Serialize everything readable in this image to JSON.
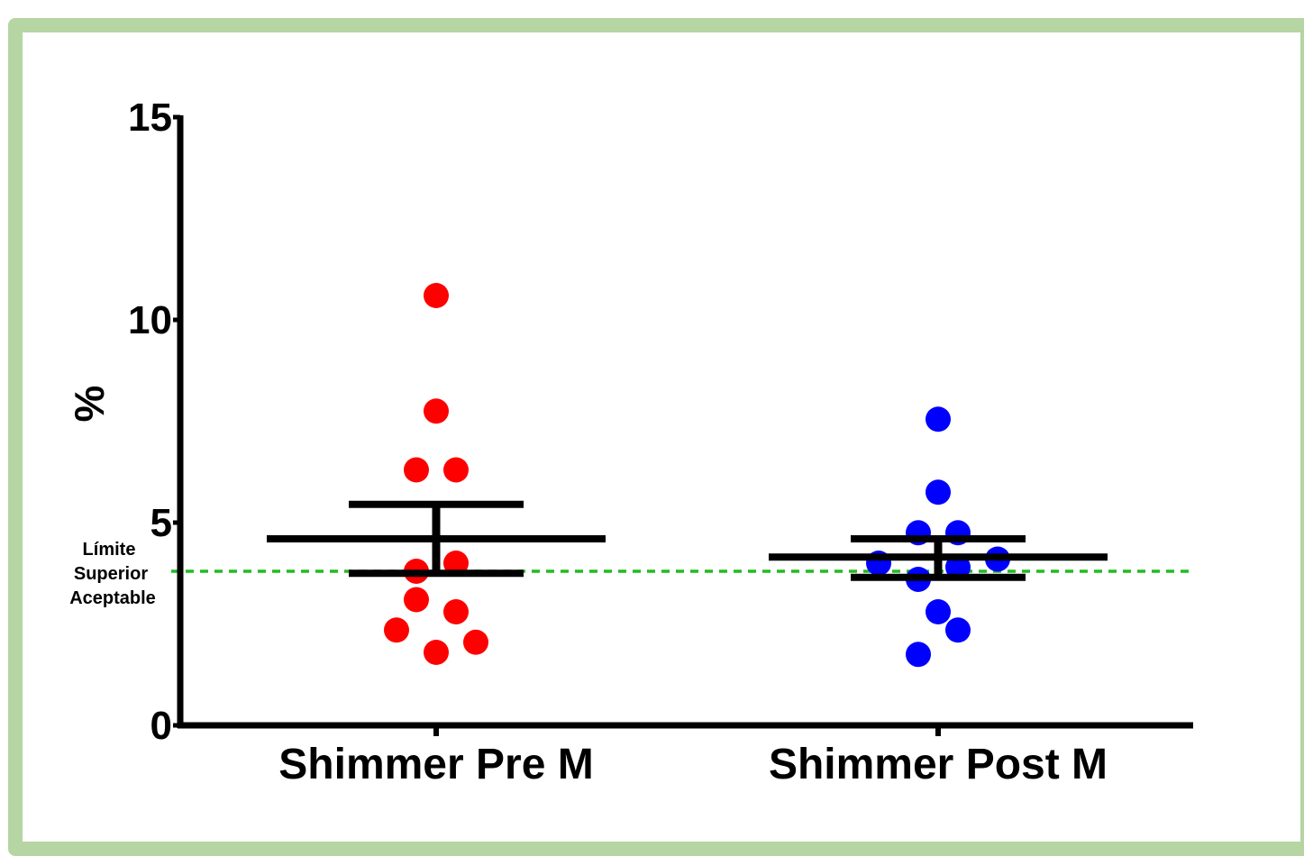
{
  "chart_data": {
    "type": "scatter",
    "ylabel": "%",
    "ylim": [
      0,
      15
    ],
    "yticks": [
      "0",
      "5",
      "10",
      "15"
    ],
    "categories": [
      "Shimmer Pre M",
      "Shimmer Post M"
    ],
    "series": [
      {
        "category": "Shimmer Pre M",
        "color": "#ff0000",
        "points": [
          {
            "offset": 0,
            "y": 10.6
          },
          {
            "offset": 0,
            "y": 7.75
          },
          {
            "offset": -1,
            "y": 6.3
          },
          {
            "offset": 1,
            "y": 6.3
          },
          {
            "offset": 1,
            "y": 4.0
          },
          {
            "offset": -1,
            "y": 3.8
          },
          {
            "offset": -1,
            "y": 3.1
          },
          {
            "offset": 1,
            "y": 2.8
          },
          {
            "offset": -2,
            "y": 2.35
          },
          {
            "offset": 2,
            "y": 2.05
          },
          {
            "offset": 0,
            "y": 1.8
          }
        ],
        "mean": 4.6,
        "error_upper": 5.45,
        "error_lower": 3.75
      },
      {
        "category": "Shimmer Post M",
        "color": "#0000ff",
        "points": [
          {
            "offset": 0,
            "y": 7.55
          },
          {
            "offset": 0,
            "y": 5.75
          },
          {
            "offset": -1,
            "y": 4.75
          },
          {
            "offset": 1,
            "y": 4.75
          },
          {
            "offset": 3,
            "y": 4.1
          },
          {
            "offset": -3,
            "y": 4.0
          },
          {
            "offset": 1,
            "y": 3.9
          },
          {
            "offset": -1,
            "y": 3.6
          },
          {
            "offset": 0,
            "y": 2.8
          },
          {
            "offset": 1,
            "y": 2.35
          },
          {
            "offset": -1,
            "y": 1.75
          }
        ],
        "mean": 4.15,
        "error_upper": 4.6,
        "error_lower": 3.65
      }
    ],
    "reference_line": {
      "y": 3.8,
      "color": "#22bb22",
      "label_lines": [
        "Límite",
        "Superior",
        "Aceptable"
      ]
    },
    "grid": false,
    "legend": "none"
  }
}
